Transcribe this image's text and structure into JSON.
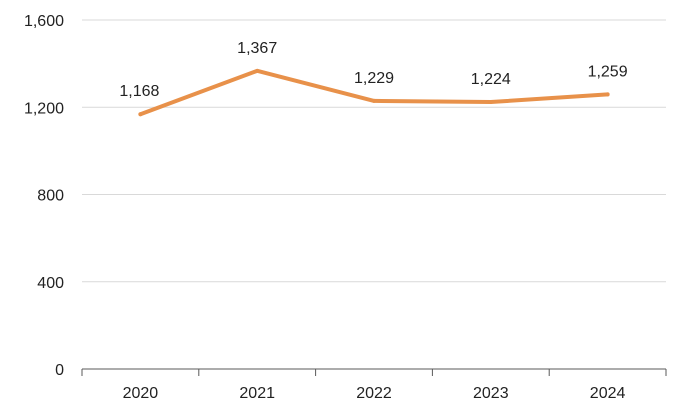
{
  "chart_data": {
    "type": "line",
    "categories": [
      "2020",
      "2021",
      "2022",
      "2023",
      "2024"
    ],
    "series": [
      {
        "values": [
          1168,
          1367,
          1229,
          1224,
          1259
        ]
      }
    ],
    "data_labels": [
      "1,168",
      "1,367",
      "1,229",
      "1,224",
      "1,259"
    ],
    "y_ticks": [
      {
        "value": 0,
        "label": "0"
      },
      {
        "value": 400,
        "label": "400"
      },
      {
        "value": 800,
        "label": "800"
      },
      {
        "value": 1200,
        "label": "1,200"
      },
      {
        "value": 1600,
        "label": "1,600"
      }
    ],
    "ylim": [
      0,
      1600
    ],
    "title": "",
    "xlabel": "",
    "ylabel": "",
    "grid": true,
    "legend": "none",
    "colors": {
      "line": "#E8914A",
      "grid": "#D9D9D9",
      "axis": "#595959"
    }
  }
}
